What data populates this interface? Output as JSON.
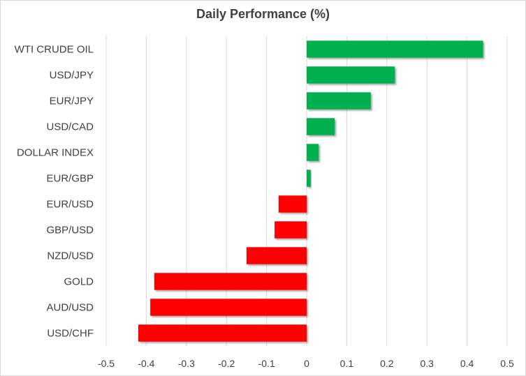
{
  "chart_data": {
    "type": "bar",
    "orientation": "horizontal",
    "title": "Daily Performance (%)",
    "xlabel": "",
    "ylabel": "",
    "xlim": [
      -0.5,
      0.5
    ],
    "xticks": [
      "-0.5",
      "-0.4",
      "-0.3",
      "-0.2",
      "-0.1",
      "0",
      "0.1",
      "0.2",
      "0.3",
      "0.4",
      "0.5"
    ],
    "grid": "vertical",
    "legend": "none",
    "colors": {
      "positive": "#00b050",
      "negative": "#ff0000",
      "grid": "#d9d9d9"
    },
    "categories": [
      "WTI CRUDE OIL",
      "USD/JPY",
      "EUR/JPY",
      "USD/CAD",
      "DOLLAR INDEX",
      "EUR/GBP",
      "EUR/USD",
      "GBP/USD",
      "NZD/USD",
      "GOLD",
      "AUD/USD",
      "USD/CHF"
    ],
    "values": [
      0.44,
      0.22,
      0.16,
      0.07,
      0.03,
      0.01,
      -0.07,
      -0.08,
      -0.15,
      -0.38,
      -0.39,
      -0.42
    ]
  }
}
